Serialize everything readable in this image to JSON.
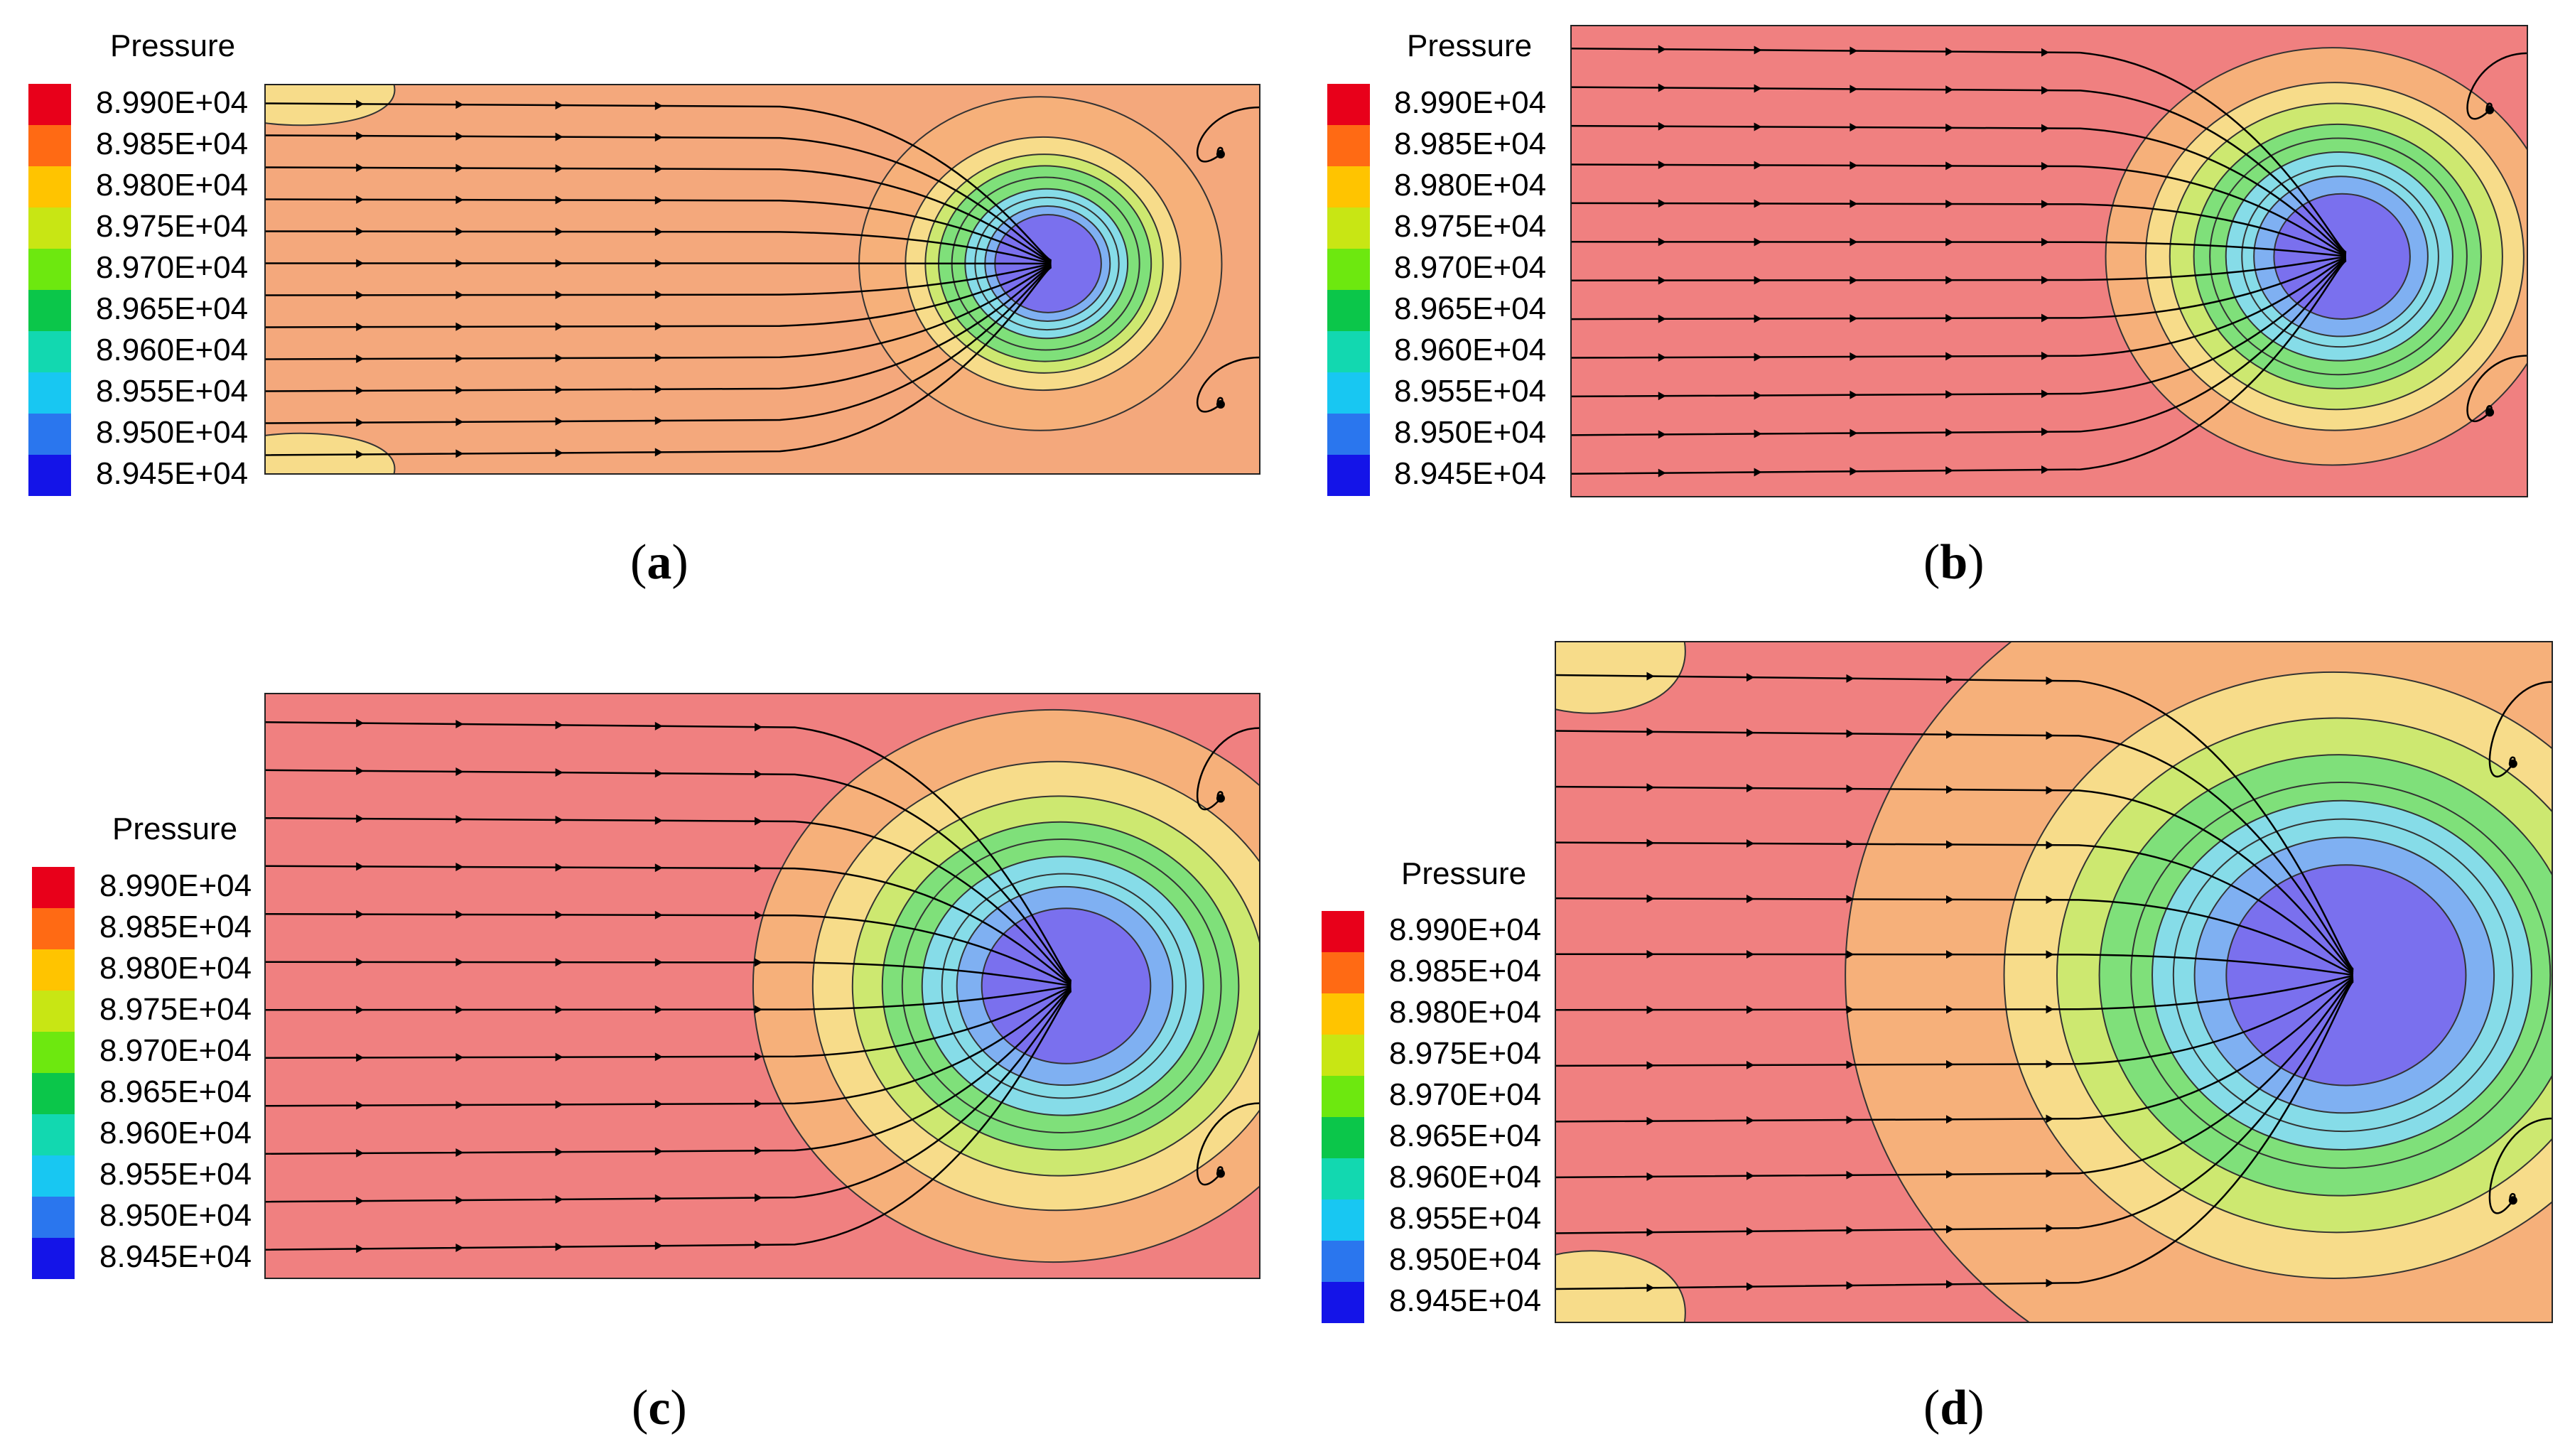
{
  "figure": {
    "legend_title": "Pressure",
    "legend_levels": [
      "8.990E+04",
      "8.985E+04",
      "8.980E+04",
      "8.975E+04",
      "8.970E+04",
      "8.965E+04",
      "8.960E+04",
      "8.955E+04",
      "8.950E+04",
      "8.945E+04"
    ],
    "legend_colors": [
      "#e8001a",
      "#ff6a14",
      "#ffc400",
      "#c8e614",
      "#6de80f",
      "#0bc64a",
      "#12d8b0",
      "#18c7f2",
      "#2a76ee",
      "#1414e8"
    ],
    "contour_fill": {
      "far_field": "#f08080",
      "far_field_a": "#f4a87c",
      "ring_orange": "#f6b07a",
      "ring_yellow": "#f7dc8a",
      "ring_lime": "#cde870",
      "ring_green": "#7fe07a",
      "ring_cyan": "#86dce8",
      "ring_blue": "#7fb0f2",
      "core_violet": "#7a70ee"
    }
  },
  "chart_data": [
    {
      "type": "heatmap",
      "panel": "a",
      "caption_open": "(",
      "caption_letter": "a",
      "caption_close": ")",
      "variable": "Pressure",
      "colorbar_levels": [
        89900,
        89850,
        89800,
        89750,
        89700,
        89650,
        89600,
        89550,
        89500,
        89450
      ],
      "low_pressure_center": "near right wall",
      "recirculation_vortices": 2
    },
    {
      "type": "heatmap",
      "panel": "b",
      "caption_open": "(",
      "caption_letter": "b",
      "caption_close": ")",
      "variable": "Pressure",
      "colorbar_levels": [
        89900,
        89850,
        89800,
        89750,
        89700,
        89650,
        89600,
        89550,
        89500,
        89450
      ],
      "low_pressure_center": "near right wall",
      "recirculation_vortices": 2
    },
    {
      "type": "heatmap",
      "panel": "c",
      "caption_open": "(",
      "caption_letter": "c",
      "caption_close": ")",
      "variable": "Pressure",
      "colorbar_levels": [
        89900,
        89850,
        89800,
        89750,
        89700,
        89650,
        89600,
        89550,
        89500,
        89450
      ],
      "low_pressure_center": "near right wall",
      "recirculation_vortices": 2
    },
    {
      "type": "heatmap",
      "panel": "d",
      "caption_open": "(",
      "caption_letter": "d",
      "caption_close": ")",
      "variable": "Pressure",
      "colorbar_levels": [
        89900,
        89850,
        89800,
        89750,
        89700,
        89650,
        89600,
        89550,
        89500,
        89450
      ],
      "low_pressure_center": "near right wall",
      "recirculation_vortices": 2
    }
  ]
}
